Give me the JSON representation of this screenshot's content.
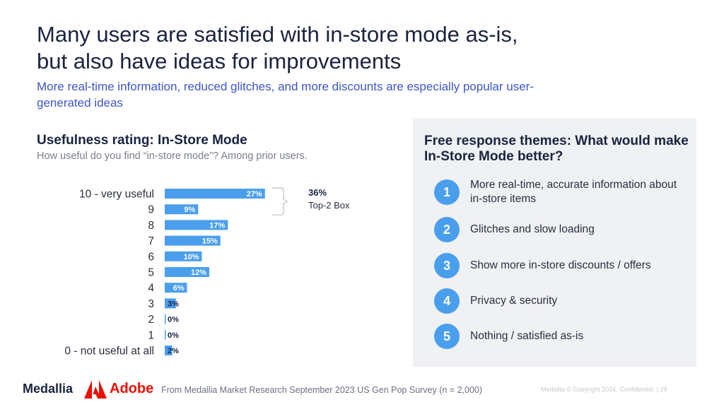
{
  "title": "Many users are satisfied with in-store mode as-is, but also have ideas for improvements",
  "subtitle": "More real-time information, reduced glitches, and more discounts are especially popular user-generated ideas",
  "left_section": {
    "title": "Usefulness rating: In-Store Mode",
    "question": "How useful do you find “in-store mode”? Among prior users."
  },
  "chart_data": {
    "type": "bar",
    "orientation": "horizontal",
    "categories": [
      "10 - very useful",
      "9",
      "8",
      "7",
      "6",
      "5",
      "4",
      "3",
      "2",
      "1",
      "0 - not useful at all"
    ],
    "values": [
      27,
      9,
      17,
      15,
      10,
      12,
      6,
      3,
      0,
      0,
      2
    ],
    "value_labels": [
      "27%",
      "9%",
      "17%",
      "15%",
      "10%",
      "12%",
      "6%",
      "3%",
      "0%",
      "0%",
      "2%"
    ],
    "bar_color": "#4a9fed",
    "annotation": {
      "value": "36%",
      "label": "Top-2 Box"
    }
  },
  "right_panel": {
    "title": "Free response themes: What would make In-Store Mode better?",
    "themes": [
      {
        "num": "1",
        "text": "More real-time, accurate information about in-store items"
      },
      {
        "num": "2",
        "text": "Glitches and slow loading"
      },
      {
        "num": "3",
        "text": "Show more in-store discounts / offers"
      },
      {
        "num": "4",
        "text": "Privacy & security"
      },
      {
        "num": "5",
        "text": "Nothing / satisfied as-is"
      }
    ]
  },
  "footer": {
    "medallia": "Medallia",
    "adobe": "Adobe",
    "source": "From Medallia Market Research September 2023 US Gen Pop Survey (n = 2,000)",
    "copyright": "Medallia © Copyright 2024. Confidential. | 29"
  },
  "colors": {
    "accent_blue": "#4a9fed",
    "title_navy": "#1a2340",
    "subtitle_blue": "#3d55c8",
    "adobe_red": "#eb1000"
  }
}
